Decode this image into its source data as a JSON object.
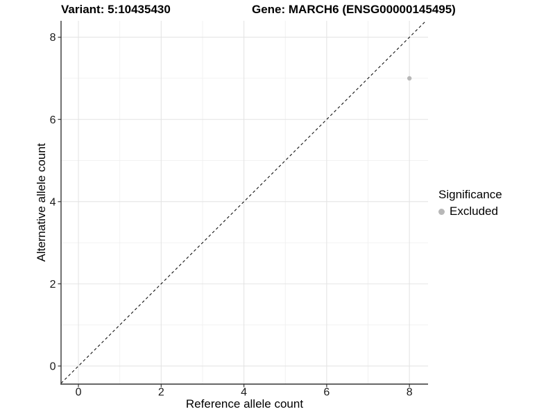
{
  "header": {
    "variant_title": "Variant: 5:10435430",
    "gene_title": "Gene: MARCH6 (ENSG00000145495)"
  },
  "legend": {
    "title": "Significance",
    "items": [
      {
        "label": "Excluded",
        "color": "#b8b8b8"
      }
    ]
  },
  "style": {
    "background": "#ffffff",
    "grid_major": "#e4e4e4",
    "grid_minor": "#f0f0f0",
    "axis_line": "#333333",
    "tick_text": "#1a1a1a",
    "title_text": "#000000"
  },
  "chart_data": {
    "type": "scatter",
    "title": "Variant: 5:10435430 — Gene: MARCH6 (ENSG00000145495)",
    "xlabel": "Reference allele count",
    "ylabel": "Alternative allele count",
    "xlim": [
      -0.42,
      8.45
    ],
    "ylim": [
      -0.44,
      8.4
    ],
    "xticks": [
      0,
      2,
      4,
      6,
      8
    ],
    "yticks": [
      0,
      2,
      4,
      6,
      8
    ],
    "minor_xticks": [
      1,
      3,
      5,
      7
    ],
    "minor_yticks": [
      1,
      3,
      5,
      7
    ],
    "grid": "white panel, light gray major+minor gridlines",
    "legend_position": "right-middle",
    "series": [
      {
        "name": "Excluded",
        "color": "#b8b8b8",
        "marker": "circle",
        "size": 3.2,
        "points": [
          {
            "x": 8,
            "y": 7
          }
        ]
      }
    ],
    "reference_line": {
      "kind": "identity y=x",
      "style": "dashed",
      "color": "#111111"
    }
  }
}
